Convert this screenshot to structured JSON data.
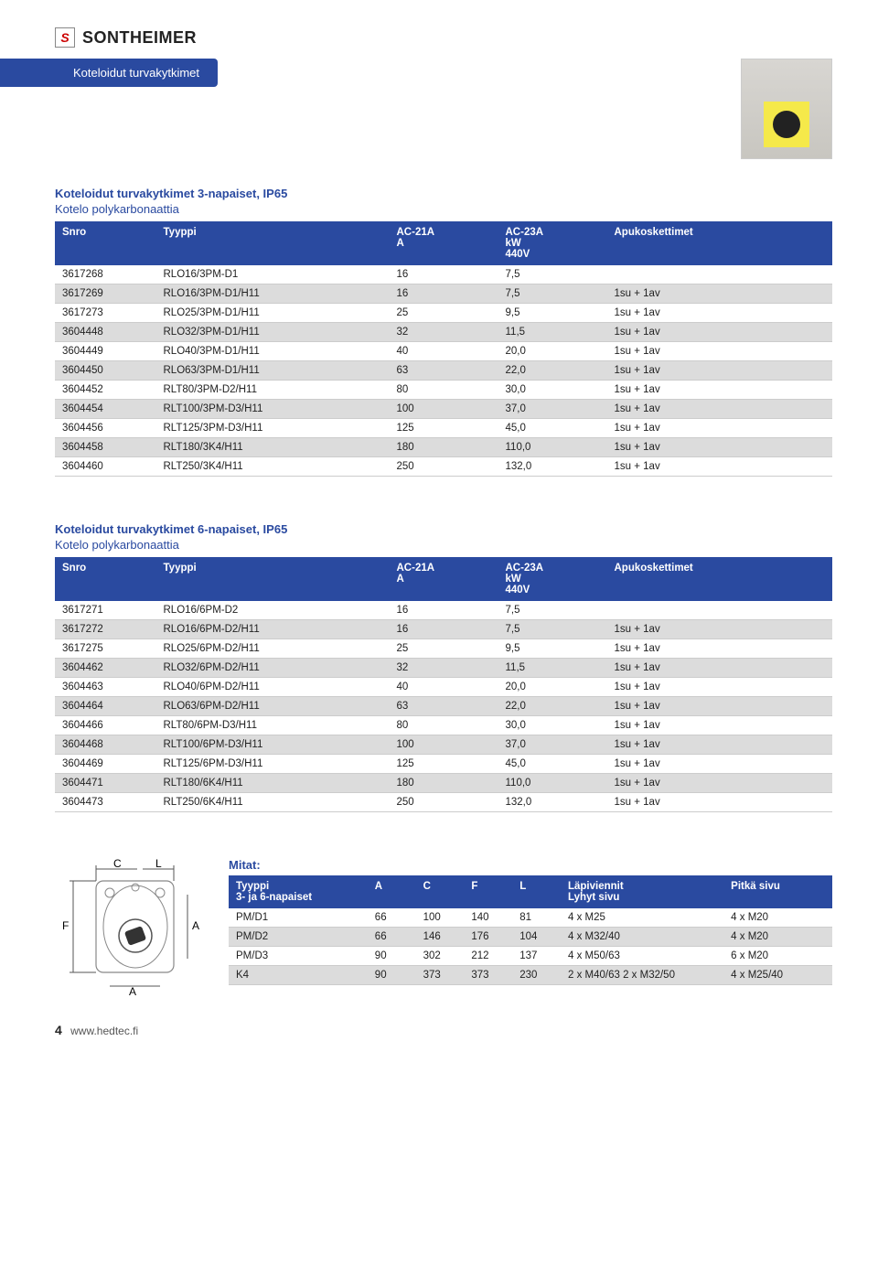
{
  "brand": "SONTHEIMER",
  "logo_letter": "S",
  "banner": "Koteloidut turvakytkimet",
  "product_image_alt": "enclosed safety switch",
  "section1": {
    "title": "Koteloidut turvakytkimet 3-napaiset, IP65",
    "subtitle": "Kotelo polykarbonaattia",
    "columns": [
      "Snro",
      "Tyyppi",
      "AC-21A\nA",
      "AC-23A\nkW\n440V",
      "Apukoskettimet"
    ],
    "rows": [
      [
        "3617268",
        "RLO16/3PM-D1",
        "16",
        "7,5",
        ""
      ],
      [
        "3617269",
        "RLO16/3PM-D1/H11",
        "16",
        "7,5",
        "1su + 1av"
      ],
      [
        "3617273",
        "RLO25/3PM-D1/H11",
        "25",
        "9,5",
        "1su + 1av"
      ],
      [
        "3604448",
        "RLO32/3PM-D1/H11",
        "32",
        "11,5",
        "1su + 1av"
      ],
      [
        "3604449",
        "RLO40/3PM-D1/H11",
        "40",
        "20,0",
        "1su + 1av"
      ],
      [
        "3604450",
        "RLO63/3PM-D1/H11",
        "63",
        "22,0",
        "1su + 1av"
      ],
      [
        "3604452",
        "RLT80/3PM-D2/H11",
        "80",
        "30,0",
        "1su + 1av"
      ],
      [
        "3604454",
        "RLT100/3PM-D3/H11",
        "100",
        "37,0",
        "1su + 1av"
      ],
      [
        "3604456",
        "RLT125/3PM-D3/H11",
        "125",
        "45,0",
        "1su + 1av"
      ],
      [
        "3604458",
        "RLT180/3K4/H11",
        "180",
        "110,0",
        "1su + 1av"
      ],
      [
        "3604460",
        "RLT250/3K4/H11",
        "250",
        "132,0",
        "1su + 1av"
      ]
    ]
  },
  "section2": {
    "title": "Koteloidut turvakytkimet 6-napaiset, IP65",
    "subtitle": "Kotelo polykarbonaattia",
    "columns": [
      "Snro",
      "Tyyppi",
      "AC-21A\nA",
      "AC-23A\nkW\n440V",
      "Apukoskettimet"
    ],
    "rows": [
      [
        "3617271",
        "RLO16/6PM-D2",
        "16",
        "7,5",
        ""
      ],
      [
        "3617272",
        "RLO16/6PM-D2/H11",
        "16",
        "7,5",
        "1su + 1av"
      ],
      [
        "3617275",
        "RLO25/6PM-D2/H11",
        "25",
        "9,5",
        "1su + 1av"
      ],
      [
        "3604462",
        "RLO32/6PM-D2/H11",
        "32",
        "11,5",
        "1su + 1av"
      ],
      [
        "3604463",
        "RLO40/6PM-D2/H11",
        "40",
        "20,0",
        "1su + 1av"
      ],
      [
        "3604464",
        "RLO63/6PM-D2/H11",
        "63",
        "22,0",
        "1su + 1av"
      ],
      [
        "3604466",
        "RLT80/6PM-D3/H11",
        "80",
        "30,0",
        "1su + 1av"
      ],
      [
        "3604468",
        "RLT100/6PM-D3/H11",
        "100",
        "37,0",
        "1su + 1av"
      ],
      [
        "3604469",
        "RLT125/6PM-D3/H11",
        "125",
        "45,0",
        "1su + 1av"
      ],
      [
        "3604471",
        "RLT180/6K4/H11",
        "180",
        "110,0",
        "1su + 1av"
      ],
      [
        "3604473",
        "RLT250/6K4/H11",
        "250",
        "132,0",
        "1su + 1av"
      ]
    ]
  },
  "mitat": {
    "label": "Mitat:",
    "columns": [
      "Tyyppi\n3- ja 6-napaiset",
      "A",
      "C",
      "F",
      "L",
      "Läpiviennit\nLyhyt sivu",
      "Pitkä sivu"
    ],
    "rows": [
      [
        "PM/D1",
        "66",
        "100",
        "140",
        "81",
        "4 x M25",
        "4 x M20"
      ],
      [
        "PM/D2",
        "66",
        "146",
        "176",
        "104",
        "4 x M32/40",
        "4 x M20"
      ],
      [
        "PM/D3",
        "90",
        "302",
        "212",
        "137",
        "4 x M50/63",
        "6 x M20"
      ],
      [
        "K4",
        "90",
        "373",
        "373",
        "230",
        "2 x M40/63     2 x M32/50",
        "4 x M25/40"
      ]
    ]
  },
  "diagram_labels": {
    "C": "C",
    "L": "L",
    "F": "F",
    "A_side": "A",
    "A_bottom": "A"
  },
  "footer": {
    "page": "4",
    "url": "www.hedtec.fi"
  },
  "col_widths": {
    "data": [
      "13%",
      "30%",
      "14%",
      "14%",
      "29%"
    ],
    "mitat": [
      "23%",
      "8%",
      "8%",
      "8%",
      "8%",
      "27%",
      "18%"
    ]
  },
  "colors": {
    "header_bg": "#2a4aa0",
    "odd_row": "#dcdcdc",
    "even_row": "#ffffff",
    "border": "#cccccc",
    "text": "#222222",
    "accent": "#2a4aa0"
  }
}
